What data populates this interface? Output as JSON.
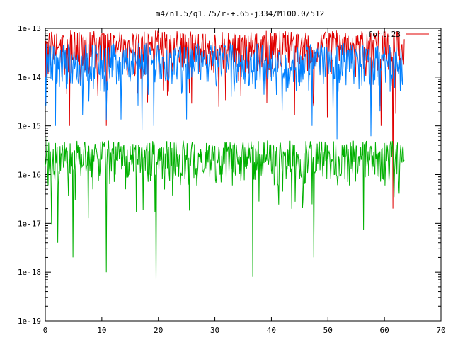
{
  "chart_data": {
    "type": "line",
    "title": "m4/n1.5/q1.75/r-+.65-j334/M100.0/512",
    "xlabel": "",
    "ylabel": "",
    "xscale": "linear",
    "yscale": "log",
    "xlim": [
      0,
      70
    ],
    "ylim": [
      1e-19,
      1e-13
    ],
    "x_ticks": [
      0,
      10,
      20,
      30,
      40,
      50,
      60,
      70
    ],
    "x_tick_labels": [
      "0",
      "10",
      "20",
      "30",
      "40",
      "50",
      "60",
      "70"
    ],
    "y_ticks": [
      1e-19,
      1e-18,
      1e-17,
      1e-16,
      1e-15,
      1e-14,
      1e-13
    ],
    "y_tick_labels": [
      "1e-19",
      "1e-18",
      "1e-17",
      "1e-16",
      "1e-15",
      "1e-14",
      "1e-13"
    ],
    "grid": false,
    "legend_position": "top-right",
    "series": [
      {
        "name": "fort.23",
        "color": "#e00000",
        "x_range": [
          0,
          63.5
        ],
        "typical_range": [
          1e-14,
          9e-14
        ],
        "x": [
          0,
          0.6,
          1.1,
          2.2,
          3.1,
          4.0,
          4.3,
          5.1,
          6.3,
          7.2,
          8.4,
          9.5,
          10.8,
          11.6,
          12.7,
          13.9,
          15.0,
          16.2,
          17.3,
          18.5,
          19.6,
          20.8,
          22.0,
          23.1,
          24.3,
          25.4,
          26.6,
          27.8,
          28.9,
          30.1,
          31.2,
          32.4,
          33.5,
          34.7,
          35.9,
          37.0,
          38.2,
          39.3,
          40.5,
          41.6,
          42.8,
          44.0,
          45.1,
          46.3,
          47.4,
          48.2,
          49.0,
          49.9,
          51.3,
          52.4,
          53.6,
          54.7,
          55.9,
          57.0,
          58.2,
          59.4,
          60.5,
          61.5,
          62.6,
          63.5
        ],
        "y": [
          3e-15,
          5e-14,
          8.5e-14,
          4e-14,
          7e-14,
          3e-14,
          1e-15,
          6e-14,
          2e-14,
          7e-14,
          3e-14,
          5e-14,
          1e-15,
          8e-14,
          3e-14,
          6e-14,
          4e-14,
          8e-14,
          2e-14,
          5e-14,
          7e-14,
          3e-14,
          6e-14,
          4e-14,
          8e-14,
          2e-14,
          5e-14,
          7e-14,
          3e-14,
          6e-14,
          4e-14,
          8e-14,
          2e-14,
          5e-14,
          7e-14,
          3e-14,
          6e-14,
          4e-14,
          8e-14,
          2e-14,
          5e-14,
          7e-14,
          3e-14,
          6e-14,
          3e-15,
          5e-14,
          4e-14,
          1.5e-15,
          6e-14,
          4e-14,
          7e-14,
          3e-14,
          6e-14,
          4e-14,
          8e-14,
          1e-15,
          6e-14,
          2e-17,
          8e-14,
          6e-14
        ]
      },
      {
        "name": "",
        "color": "#0080ff",
        "x_range": [
          0,
          63.5
        ],
        "typical_range": [
          5e-15,
          5e-14
        ],
        "x": [
          0,
          1.2,
          1.8,
          2.2,
          3.5,
          4.6,
          5.8,
          6.9,
          8.1,
          9.2,
          10.4,
          11.5,
          12.7,
          13.8,
          15.0,
          16.1,
          17.3,
          18.4,
          19.2,
          20.7,
          21.9,
          23.0,
          24.2,
          25.3,
          26.5,
          27.6,
          28.8,
          29.9,
          31.1,
          32.2,
          33.4,
          34.5,
          35.7,
          36.8,
          38.0,
          39.1,
          40.3,
          41.4,
          42.6,
          43.7,
          44.9,
          46.0,
          47.2,
          48.3,
          49.5,
          50.6,
          51.8,
          52.9,
          54.1,
          55.2,
          56.4,
          57.5,
          58.7,
          59.8,
          61.0,
          62.1,
          63.3
        ],
        "y": [
          1e-14,
          3e-14,
          1e-15,
          2.5e-14,
          1.5e-14,
          3e-14,
          8e-15,
          2e-14,
          1.2e-14,
          3e-14,
          5e-15,
          2.5e-14,
          1e-14,
          3e-14,
          8e-15,
          2e-14,
          1.5e-14,
          3e-14,
          1e-15,
          2.5e-14,
          1e-14,
          3e-14,
          5e-15,
          2e-14,
          1.5e-14,
          3e-14,
          8e-15,
          2.5e-14,
          1.2e-14,
          3e-14,
          5e-15,
          2e-14,
          1.5e-14,
          3e-14,
          8e-15,
          2.5e-14,
          1e-14,
          3e-14,
          5e-15,
          2e-14,
          1.5e-14,
          3e-14,
          1e-15,
          2.5e-14,
          1e-14,
          3e-14,
          5e-15,
          2e-14,
          1.5e-14,
          3e-14,
          8e-15,
          2.5e-14,
          1e-14,
          3e-14,
          5e-15,
          4e-14,
          3e-14
        ]
      },
      {
        "name": "",
        "color": "#00b000",
        "x_range": [
          0,
          63.5
        ],
        "typical_range": [
          6e-17,
          5e-16
        ],
        "x": [
          0,
          0.3,
          0.9,
          1.5,
          2.2,
          3.1,
          4.0,
          4.9,
          5.8,
          6.6,
          7.5,
          8.4,
          9.3,
          10.2,
          10.8,
          11.5,
          12.4,
          13.3,
          14.2,
          15.1,
          16.0,
          16.9,
          17.8,
          18.7,
          19.6,
          20.5,
          21.4,
          22.3,
          23.2,
          24.1,
          25.0,
          25.9,
          26.8,
          27.7,
          28.6,
          29.5,
          30.4,
          31.3,
          32.2,
          33.1,
          34.0,
          34.9,
          35.8,
          36.7,
          37.6,
          38.5,
          39.4,
          40.3,
          41.2,
          42.1,
          43.0,
          43.9,
          44.8,
          45.7,
          46.6,
          47.5,
          48.4,
          49.3,
          50.2,
          51.1,
          52.0,
          52.9,
          53.8,
          54.7,
          55.6,
          56.5,
          57.4,
          58.3,
          59.2,
          60.1,
          61.0,
          61.9,
          62.8,
          63.5
        ],
        "y": [
          1.5e-16,
          6e-16,
          3e-16,
          1e-16,
          4e-18,
          3e-16,
          1e-16,
          2e-18,
          4e-16,
          1.5e-16,
          3e-16,
          5e-17,
          2e-16,
          4e-16,
          1e-18,
          2e-16,
          1e-16,
          3e-16,
          5e-17,
          2e-16,
          4e-16,
          1.5e-16,
          3e-16,
          1e-16,
          7e-19,
          2e-16,
          4e-16,
          1.5e-16,
          3e-16,
          1e-16,
          2e-16,
          4e-16,
          6e-17,
          3e-16,
          1.5e-16,
          4e-16,
          2e-16,
          1e-16,
          3e-16,
          6e-17,
          2e-16,
          4e-16,
          1.5e-16,
          8e-19,
          3e-16,
          1e-16,
          2e-16,
          4e-16,
          6e-17,
          3e-16,
          1.5e-16,
          4e-16,
          2e-16,
          1e-16,
          3e-16,
          2e-18,
          4e-16,
          1.5e-16,
          3e-16,
          1e-16,
          2e-16,
          4e-16,
          6e-17,
          3e-16,
          1.5e-16,
          4e-16,
          2e-16,
          1e-16,
          3e-16,
          6e-17,
          4e-16,
          2e-16,
          3e-16,
          2e-16
        ]
      }
    ]
  }
}
